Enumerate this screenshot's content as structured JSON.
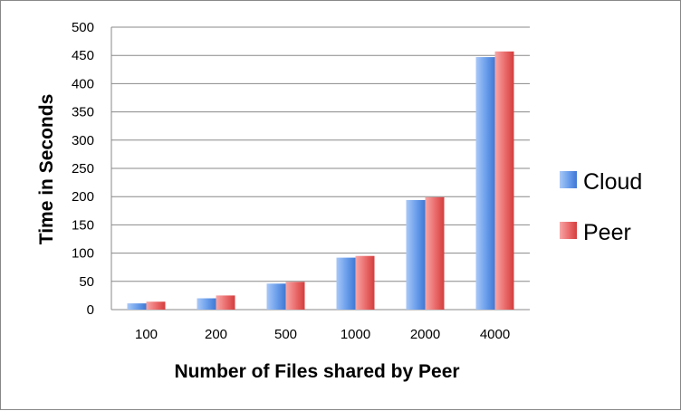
{
  "chart_data": {
    "type": "bar",
    "title": "",
    "xlabel": "Number of Files shared by Peer",
    "ylabel": "Time in Seconds",
    "categories": [
      "100",
      "200",
      "500",
      "1000",
      "2000",
      "4000"
    ],
    "series": [
      {
        "name": "Cloud",
        "values": [
          11,
          20,
          46,
          92,
          194,
          447
        ],
        "color": "#4a86dd"
      },
      {
        "name": "Peer",
        "values": [
          14,
          25,
          49,
          95,
          199,
          457
        ],
        "color": "#e04848"
      }
    ],
    "ylim": [
      0,
      500
    ],
    "yticks": [
      "0",
      "50",
      "100",
      "150",
      "200",
      "250",
      "300",
      "350",
      "400",
      "450",
      "500"
    ],
    "grid": true,
    "legend_position": "right"
  }
}
